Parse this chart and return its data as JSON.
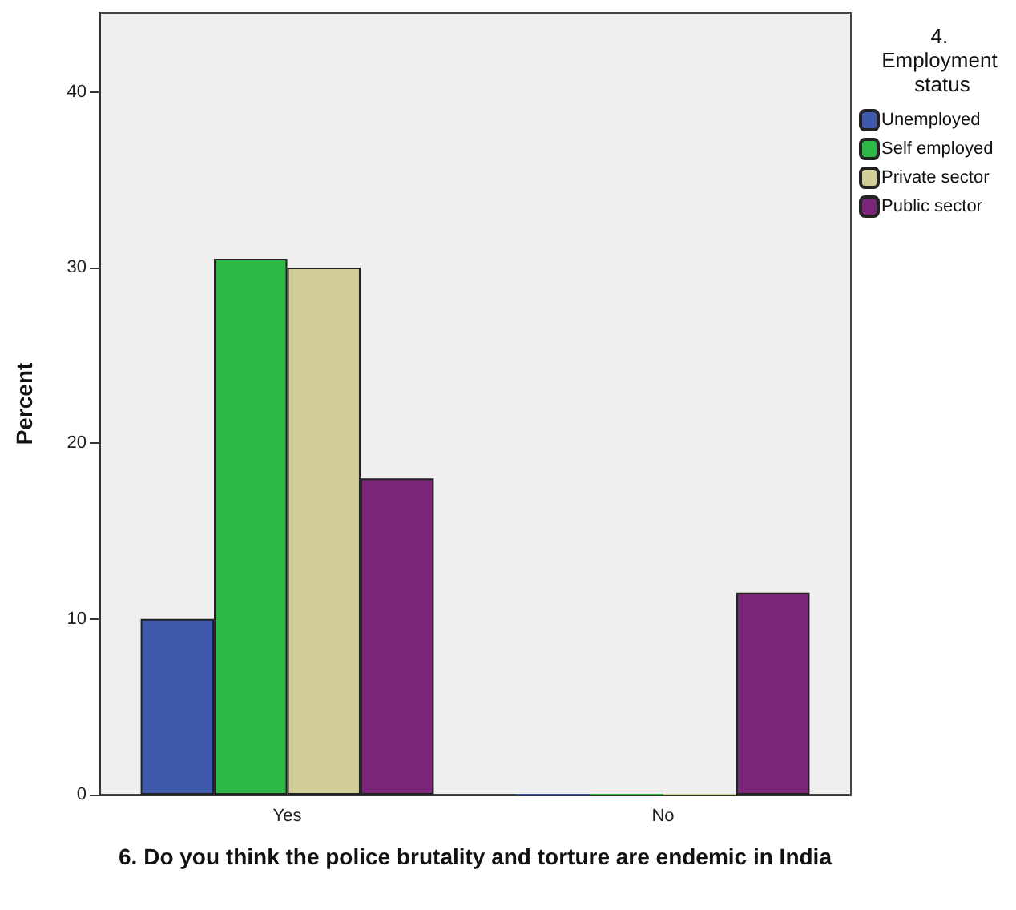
{
  "chart_data": {
    "type": "bar",
    "xlabel": "6. Do you think the police brutality and torture are endemic in India",
    "ylabel": "Percent",
    "legend_title": "4. Employment status",
    "legend": "top right",
    "categories": [
      "Yes",
      "No"
    ],
    "series": [
      {
        "name": "Unemployed",
        "color": "#3e58ac",
        "values": [
          10.0,
          0
        ]
      },
      {
        "name": "Self employed",
        "color": "#2eb848",
        "values": [
          30.5,
          0
        ]
      },
      {
        "name": "Private sector",
        "color": "#d2ce98",
        "values": [
          30.0,
          0
        ]
      },
      {
        "name": "Public sector",
        "color": "#7b2579",
        "values": [
          18.0,
          11.5
        ]
      }
    ],
    "ylim": [
      0,
      44.5
    ],
    "yticks": [
      0,
      10,
      20,
      30,
      40
    ]
  }
}
